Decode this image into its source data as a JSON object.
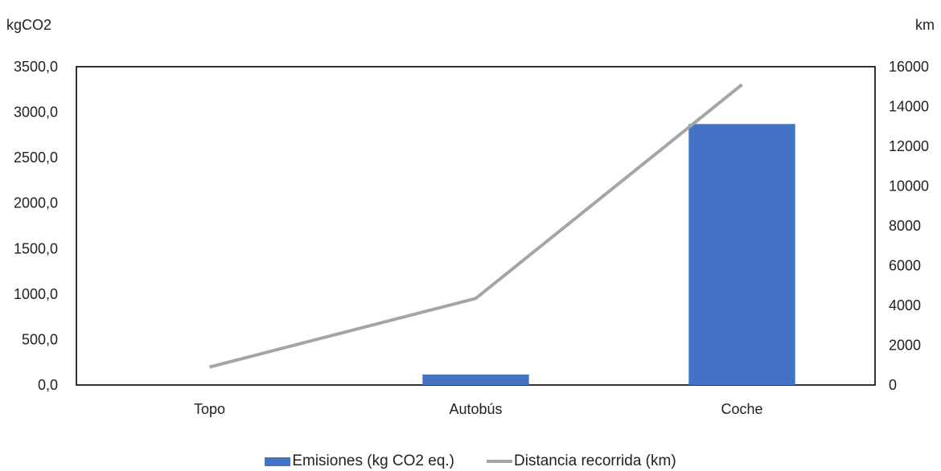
{
  "chart_data": {
    "type": "bar",
    "categories": [
      "Topo",
      "Autobús",
      "Coche"
    ],
    "series": [
      {
        "name": "Emisiones (kg CO2 eq.)",
        "type": "bar",
        "axis": "left",
        "color": "#4472C4",
        "values": [
          0,
          115,
          2870
        ]
      },
      {
        "name": "Distancia recorrida (km)",
        "type": "line",
        "axis": "right",
        "color": "#A5A5A5",
        "values": [
          900,
          4350,
          15100
        ]
      }
    ],
    "y_left": {
      "unit": "kgCO2",
      "ylim": [
        0,
        3500
      ],
      "ticks": [
        "0,0",
        "500,0",
        "1000,0",
        "1500,0",
        "2000,0",
        "2500,0",
        "3000,0",
        "3500,0"
      ]
    },
    "y_right": {
      "unit": "km",
      "ylim": [
        0,
        16000
      ],
      "ticks": [
        "0",
        "2000",
        "4000",
        "6000",
        "8000",
        "10000",
        "12000",
        "14000",
        "16000"
      ]
    },
    "grid": false,
    "legend_position": "bottom"
  }
}
